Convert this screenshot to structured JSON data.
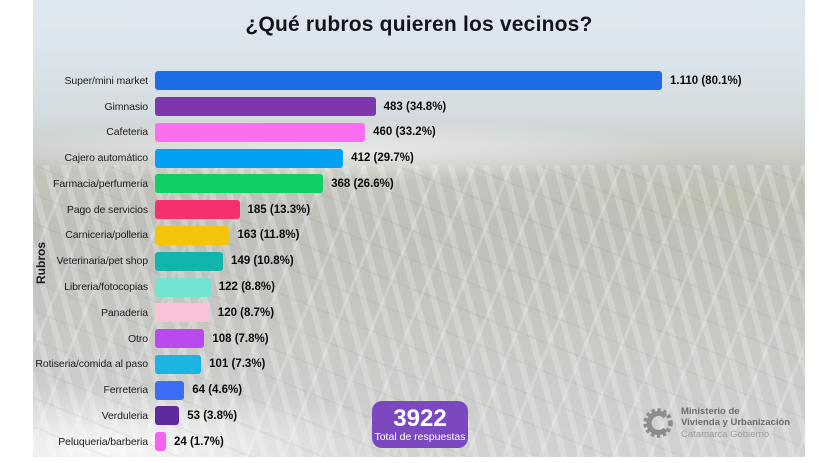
{
  "title": "¿Qué rubros quieren los vecinos?",
  "chart_data": {
    "type": "bar",
    "orientation": "horizontal",
    "title": "¿Qué rubros quieren los vecinos?",
    "ylabel": "Rubros",
    "xlabel": "",
    "grid": false,
    "legend": false,
    "categories": [
      "Super/mini market",
      "Gimnasio",
      "Cafeteria",
      "Cajero automático",
      "Farmacia/perfumeria",
      "Pago de servicios",
      "Carniceria/polleria",
      "Veterinaria/pet shop",
      "Libreria/fotocopias",
      "Panaderia",
      "Otro",
      "Rotiseria/comida al paso",
      "Ferreteria",
      "Verduleria",
      "Peluqueria/barberia"
    ],
    "values": [
      1110,
      483,
      460,
      412,
      368,
      185,
      163,
      149,
      122,
      120,
      108,
      101,
      64,
      53,
      24
    ],
    "value_labels": [
      "1.110 (80.1%)",
      "483 (34.8%)",
      "460 (33.2%)",
      "412 (29.7%)",
      "368 (26.6%)",
      "185 (13.3%)",
      "163 (11.8%)",
      "149 (10.8%)",
      "122 (8.8%)",
      "120 (8.7%)",
      "108 (7.8%)",
      "101 (7.3%)",
      "64 (4.6%)",
      "53 (3.8%)",
      "24 (1.7%)"
    ],
    "colors": [
      "#1e6be8",
      "#7e37aa",
      "#fb6ef0",
      "#00a0f5",
      "#10d062",
      "#f5306e",
      "#f2c40c",
      "#12b5ab",
      "#72e2d2",
      "#f9c2d8",
      "#b94af0",
      "#1cb4e0",
      "#3d6df5",
      "#5e2b9e",
      "#f563f0"
    ],
    "total_responses": 3922
  },
  "total_badge": {
    "value": "3922",
    "label": "Total de respuestas",
    "bg_color": "#7b48c0",
    "text_color": "#ffffff"
  },
  "logo": {
    "line1": "Ministerio de",
    "line2": "Vivienda y Urbanización",
    "line3": "Catamarca Gobierno"
  }
}
